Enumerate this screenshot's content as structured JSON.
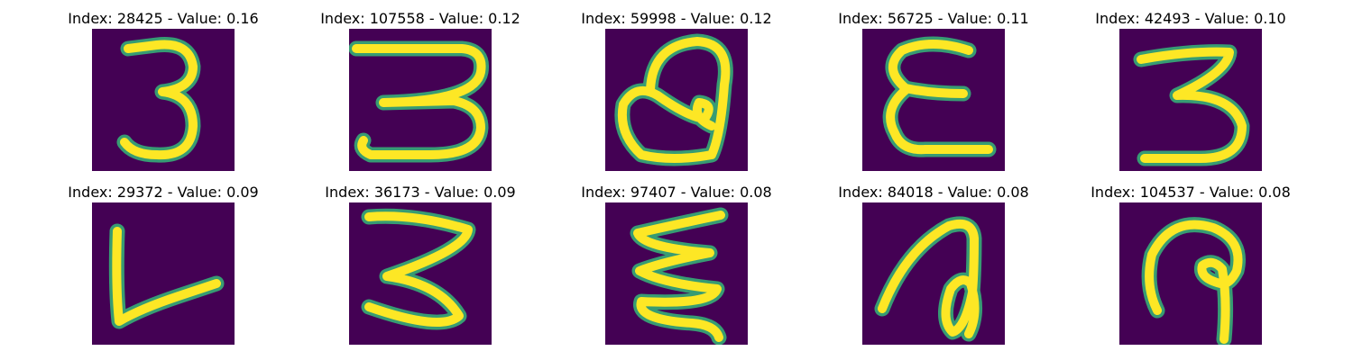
{
  "panels": [
    {
      "title": "Index: 28425 - Value: 0.16",
      "digit_image": "handwritten-3-upright"
    },
    {
      "title": "Index: 107558 - Value: 0.12",
      "digit_image": "handwritten-3-flat-bottom"
    },
    {
      "title": "Index: 59998 - Value: 0.12",
      "digit_image": "handwritten-a-loop"
    },
    {
      "title": "Index: 56725 - Value: 0.11",
      "digit_image": "handwritten-e-shape"
    },
    {
      "title": "Index: 42493 - Value: 0.10",
      "digit_image": "handwritten-3-wide"
    },
    {
      "title": "Index: 29372 - Value: 0.09",
      "digit_image": "handwritten-l-rotated"
    },
    {
      "title": "Index: 36173 - Value: 0.09",
      "digit_image": "handwritten-3-zigzag"
    },
    {
      "title": "Index: 97407 - Value: 0.08",
      "digit_image": "handwritten-zigzag-stack"
    },
    {
      "title": "Index: 84018 - Value: 0.08",
      "digit_image": "handwritten-loop-stroke"
    },
    {
      "title": "Index: 104537 - Value: 0.08",
      "digit_image": "handwritten-hook-shape"
    }
  ],
  "colors": {
    "image_background": "#440154",
    "stroke_core": "#fde725",
    "stroke_edge": "#35b779"
  }
}
